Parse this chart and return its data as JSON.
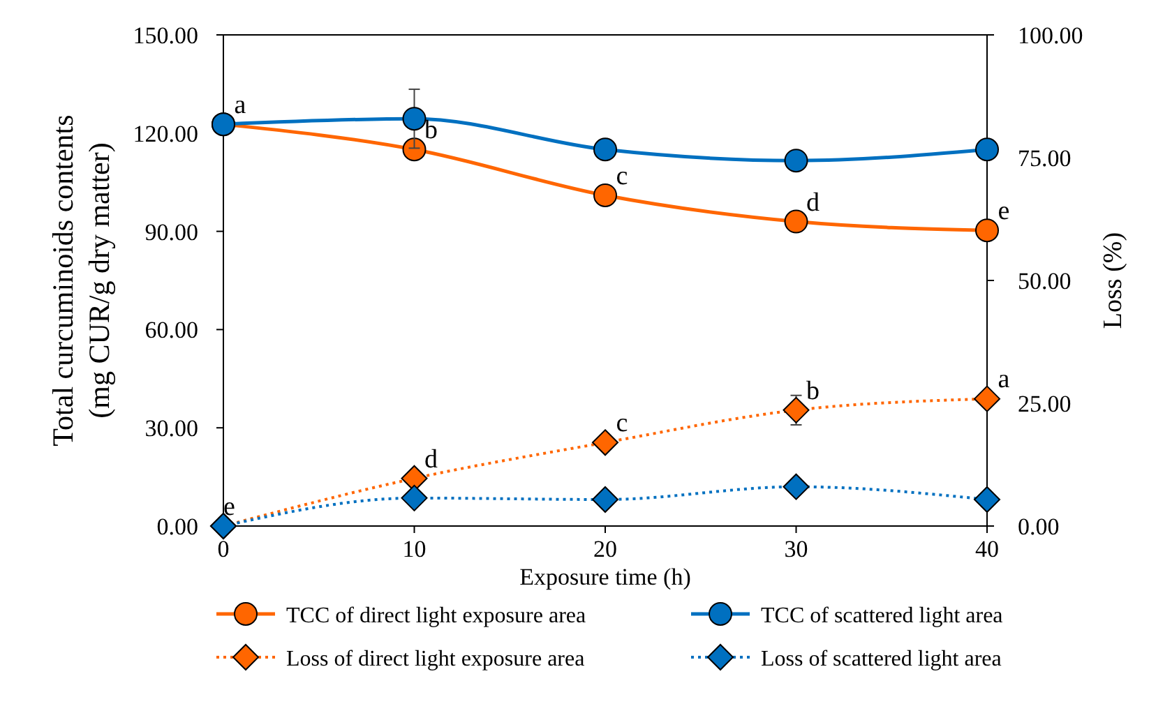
{
  "chart_data": {
    "type": "line",
    "xlabel": "Exposure time (h)",
    "ylabel": "Total curcuminoids contents\n(mg CUR/g dry matter)",
    "y2label": "Loss (%)",
    "x": [
      0,
      10,
      20,
      30,
      40
    ],
    "xlim": [
      0,
      40
    ],
    "xticks": [
      0,
      10,
      20,
      30,
      40
    ],
    "ylim": [
      0,
      150
    ],
    "yticks": [
      {
        "value": 0,
        "label": "0.00"
      },
      {
        "value": 30,
        "label": "30.00"
      },
      {
        "value": 60,
        "label": "60.00"
      },
      {
        "value": 90,
        "label": "90.00"
      },
      {
        "value": 120,
        "label": "120.00"
      },
      {
        "value": 150,
        "label": "150.00"
      }
    ],
    "y2lim": [
      0,
      100
    ],
    "y2ticks": [
      {
        "value": 0,
        "label": "0.00"
      },
      {
        "value": 25,
        "label": "25.00"
      },
      {
        "value": 50,
        "label": "50.00"
      },
      {
        "value": 75,
        "label": "75.00"
      },
      {
        "value": 100,
        "label": "100.00"
      }
    ],
    "grid": false,
    "legend": "bottom",
    "series": [
      {
        "name": "TCC of direct light exposure area",
        "color": "#ff6600",
        "values": [
          122.7,
          115,
          101,
          93,
          90.3
        ],
        "marker": "circle",
        "line_style": "solid"
      },
      {
        "name": "TCC of scattered light area",
        "color": "#0070c0",
        "values": [
          122.7,
          124.4,
          115,
          111.6,
          115
        ],
        "errors": [
          null,
          9,
          null,
          null,
          null
        ],
        "marker": "circle",
        "line_style": "solid"
      },
      {
        "name": "Loss of direct light exposure area",
        "color": "#ff6600",
        "values": [
          0,
          9.7,
          17,
          23.6,
          25.9
        ],
        "errors": [
          null,
          null,
          null,
          3,
          null
        ],
        "axis": "y2",
        "marker": "diamond",
        "line_style": "dotted"
      },
      {
        "name": "Loss of scattered light area",
        "color": "#0070c0",
        "values": [
          0,
          5.7,
          5.4,
          8,
          5.4
        ],
        "axis": "y2",
        "marker": "diamond",
        "line_style": "dotted"
      }
    ],
    "annotations": [
      {
        "text": "a",
        "x": 0,
        "y": 122.7
      },
      {
        "text": "b",
        "x": 10,
        "y": 115
      },
      {
        "text": "c",
        "x": 20,
        "y": 101
      },
      {
        "text": "d",
        "x": 30,
        "y": 93
      },
      {
        "text": "e",
        "x": 40,
        "y": 90.3
      },
      {
        "text": "e",
        "x": 0,
        "y": 0
      },
      {
        "text": "d",
        "x": 10,
        "y": 14.5
      },
      {
        "text": "c",
        "x": 20,
        "y": 25.5
      },
      {
        "text": "b",
        "x": 30,
        "y": 35.4
      },
      {
        "text": "a",
        "x": 40,
        "y": 38.9
      }
    ]
  }
}
